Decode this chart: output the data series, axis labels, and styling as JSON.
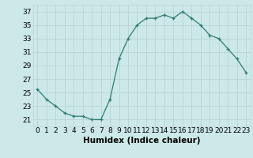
{
  "x": [
    0,
    1,
    2,
    3,
    4,
    5,
    6,
    7,
    8,
    9,
    10,
    11,
    12,
    13,
    14,
    15,
    16,
    17,
    18,
    19,
    20,
    21,
    22,
    23
  ],
  "y": [
    25.5,
    24.0,
    23.0,
    22.0,
    21.5,
    21.5,
    21.0,
    21.0,
    24.0,
    30.0,
    33.0,
    35.0,
    36.0,
    36.0,
    36.5,
    36.0,
    37.0,
    36.0,
    35.0,
    33.5,
    33.0,
    31.5,
    30.0,
    28.0
  ],
  "xlabel": "Humidex (Indice chaleur)",
  "ylim": [
    20,
    38
  ],
  "yticks": [
    21,
    23,
    25,
    27,
    29,
    31,
    33,
    35,
    37
  ],
  "xticks": [
    0,
    1,
    2,
    3,
    4,
    5,
    6,
    7,
    8,
    9,
    10,
    11,
    12,
    13,
    14,
    15,
    16,
    17,
    18,
    19,
    20,
    21,
    22,
    23
  ],
  "line_color": "#2e7d6e",
  "bg_color": "#cce8e8",
  "grid_color": "#b8d4d4",
  "xlabel_fontsize": 7.5,
  "tick_fontsize": 6.5
}
